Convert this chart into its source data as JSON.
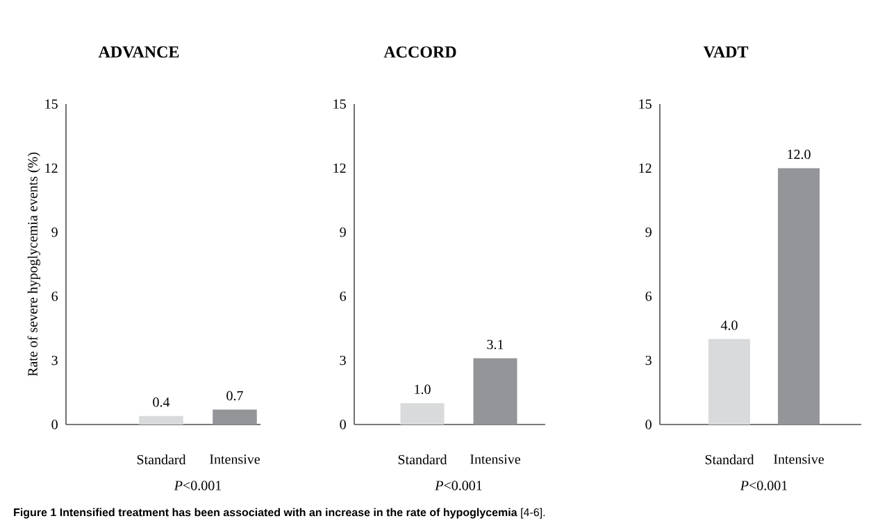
{
  "chart_data": [
    {
      "type": "bar",
      "title": "ADVANCE",
      "ylabel": "Rate of severe hypoglycemia events (%)",
      "categories": [
        "Standard",
        "Intensive"
      ],
      "values": [
        0.4,
        0.7
      ],
      "value_labels": [
        "0.4",
        "0.7"
      ],
      "colors": [
        "#d9dadb",
        "#939598"
      ],
      "ylim": [
        0,
        15
      ],
      "yticks": [
        0,
        3,
        6,
        9,
        12,
        15
      ],
      "annotations": [
        "*P*<0.001",
        "**Figure 1 Intensified treatment has been associated with an increase in the rate of hypoglycemia** [4-6]."
      ]
    },
    {
      "type": "bar",
      "title": "ACCORD",
      "categories": [
        "Standard",
        "Intensive"
      ],
      "values": [
        1.0,
        3.1
      ],
      "value_labels": [
        "1.0",
        "3.1"
      ],
      "colors": [
        "#d9dadb",
        "#939598"
      ],
      "ylim": [
        0,
        15
      ],
      "yticks": [
        0,
        3,
        6,
        9,
        12,
        15
      ],
      "annotations": [
        "*P*<0.001"
      ]
    },
    {
      "type": "bar",
      "title": "VADT",
      "categories": [
        "Standard",
        "Intensive"
      ],
      "values": [
        4.0,
        12.0
      ],
      "value_labels": [
        "4.0",
        "12.0"
      ],
      "colors": [
        "#d9dadb",
        "#939598"
      ],
      "ylim": [
        0,
        15
      ],
      "yticks": [
        0,
        3,
        6,
        9,
        12,
        15
      ],
      "annotations": [
        "*P*<0.001"
      ]
    }
  ]
}
